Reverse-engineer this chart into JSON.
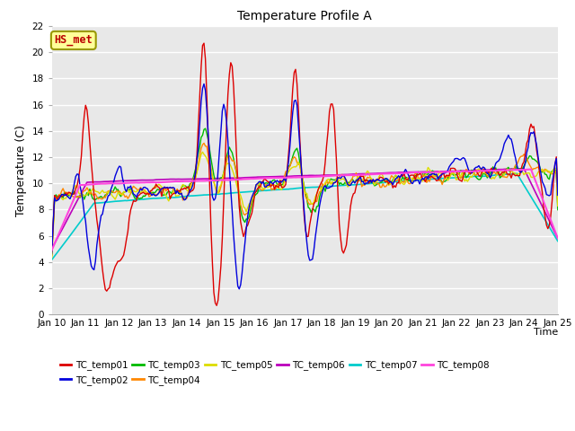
{
  "title": "Temperature Profile A",
  "xlabel": "Time",
  "ylabel": "Temperature (C)",
  "annotation": "HS_met",
  "ylim": [
    0,
    22
  ],
  "yticks": [
    0,
    2,
    4,
    6,
    8,
    10,
    12,
    14,
    16,
    18,
    20,
    22
  ],
  "xtick_labels": [
    "Jan 10",
    "Jan 11",
    "Jan 12",
    "Jan 13",
    "Jan 14",
    "Jan 15",
    "Jan 16",
    "Jan 17",
    "Jan 18",
    "Jan 19",
    "Jan 20",
    "Jan 21",
    "Jan 22",
    "Jan 23",
    "Jan 24",
    "Jan 25"
  ],
  "series_colors": {
    "TC_temp01": "#dd0000",
    "TC_temp02": "#0000dd",
    "TC_temp03": "#00bb00",
    "TC_temp04": "#ff8800",
    "TC_temp05": "#dddd00",
    "TC_temp06": "#bb00bb",
    "TC_temp07": "#00cccc",
    "TC_temp08": "#ff44dd"
  },
  "plot_bg_color": "#e8e8e8",
  "fig_bg_color": "#ffffff",
  "annotation_bg": "#ffff99",
  "annotation_border": "#999900",
  "annotation_text_color": "#bb0000",
  "grid_color": "#ffffff",
  "title_fontsize": 10,
  "tick_fontsize": 7.5,
  "ylabel_fontsize": 9,
  "xlabel_fontsize": 8,
  "legend_fontsize": 7.5
}
